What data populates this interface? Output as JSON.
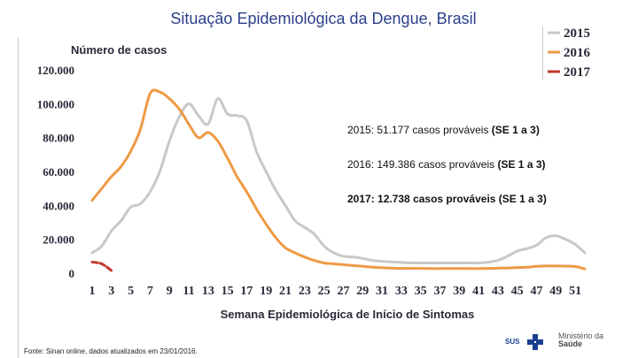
{
  "title": "Situação Epidemiológica da Dengue, Brasil",
  "footer": "Fonte: Sinan online, dados atualizados em 23/01/2016.",
  "logo": {
    "sus": "SUS",
    "ministry_line1": "Ministério da",
    "ministry_line2": "Saúde"
  },
  "chart_data": {
    "type": "line",
    "ylabel": "Número de casos",
    "xlabel": "Semana Epidemiológica de Início de Sintomas",
    "ylim": [
      0,
      120000
    ],
    "yticks": [
      0,
      20000,
      40000,
      60000,
      80000,
      100000,
      120000
    ],
    "ytick_labels": [
      "0",
      "20.000",
      "40.000",
      "60.000",
      "80.000",
      "100.000",
      "120.000"
    ],
    "x_weeks": [
      1,
      52
    ],
    "xtick_labels": [
      "1",
      "3",
      "5",
      "7",
      "9",
      "11",
      "13",
      "15",
      "17",
      "19",
      "21",
      "23",
      "25",
      "27",
      "29",
      "31",
      "33",
      "35",
      "37",
      "39",
      "41",
      "43",
      "45",
      "47",
      "49",
      "51"
    ],
    "legend": [
      "2015",
      "2016",
      "2017"
    ],
    "legend_position": "top-right",
    "series": [
      {
        "name": "2015",
        "color": "#c8c8c8",
        "x": [
          1,
          2,
          3,
          4,
          5,
          6,
          7,
          8,
          9,
          10,
          11,
          12,
          13,
          14,
          15,
          16,
          17,
          18,
          19,
          20,
          21,
          22,
          23,
          24,
          25,
          26,
          27,
          28,
          29,
          30,
          31,
          32,
          33,
          34,
          35,
          36,
          37,
          38,
          39,
          40,
          41,
          42,
          43,
          44,
          45,
          46,
          47,
          48,
          49,
          50,
          51,
          52
        ],
        "values": [
          12000,
          16000,
          25000,
          31000,
          39000,
          41000,
          48000,
          60000,
          78000,
          92000,
          100000,
          93000,
          88000,
          103000,
          94000,
          93000,
          90000,
          72000,
          60000,
          49000,
          40000,
          31000,
          27000,
          23000,
          16000,
          12000,
          10000,
          9500,
          8700,
          7500,
          7000,
          6600,
          6300,
          6000,
          6000,
          6000,
          6000,
          6000,
          6000,
          6000,
          6000,
          6500,
          7500,
          10000,
          13000,
          14500,
          16500,
          21000,
          22000,
          20000,
          17000,
          12000
        ]
      },
      {
        "name": "2016",
        "color": "#ee9a44",
        "x": [
          1,
          2,
          3,
          4,
          5,
          6,
          7,
          8,
          9,
          10,
          11,
          12,
          13,
          14,
          15,
          16,
          17,
          18,
          19,
          20,
          21,
          22,
          23,
          24,
          25,
          26,
          27,
          28,
          29,
          30,
          31,
          32,
          33,
          34,
          35,
          36,
          37,
          38,
          39,
          40,
          41,
          42,
          43,
          44,
          45,
          46,
          47,
          48,
          49,
          50,
          51,
          52
        ],
        "values": [
          43000,
          50000,
          57000,
          63000,
          72000,
          85000,
          106000,
          107000,
          103000,
          97000,
          88000,
          80000,
          83000,
          78000,
          68000,
          57000,
          48000,
          38000,
          29000,
          21000,
          15000,
          12000,
          9500,
          7500,
          6000,
          5500,
          5000,
          4500,
          4000,
          3500,
          3200,
          3000,
          2800,
          2800,
          2800,
          2700,
          2700,
          2700,
          2700,
          2700,
          2700,
          2800,
          2900,
          3100,
          3300,
          3500,
          4000,
          4200,
          4200,
          4100,
          3900,
          2500
        ]
      },
      {
        "name": "2017",
        "color": "#c0392b",
        "x": [
          1,
          2,
          3
        ],
        "values": [
          6500,
          5500,
          1500
        ]
      }
    ],
    "annotations": [
      {
        "prefix": "2015:",
        "text": "51.177 casos prováveis",
        "bold_part": "(SE 1 a 3)"
      },
      {
        "prefix": "2016:",
        "text": "149.386 casos prováveis",
        "bold_part": "(SE 1 a 3)"
      },
      {
        "prefix": "2017:",
        "text": "12.738 casos prováveis",
        "bold_part": "(SE 1 a 3)",
        "all_bold": true
      }
    ]
  }
}
